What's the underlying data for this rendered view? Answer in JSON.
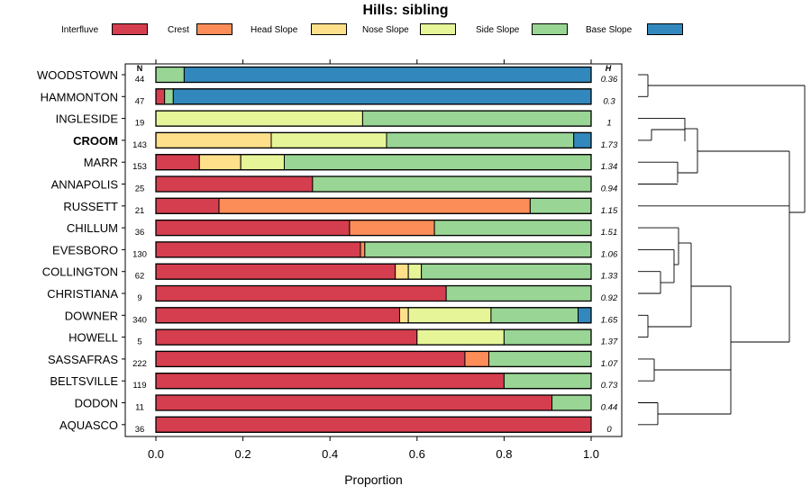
{
  "chart_data": {
    "type": "bar",
    "orientation": "horizontal",
    "stacked": true,
    "title": "Hills: sibling",
    "xlabel": "Proportion",
    "ylabel": "",
    "xlim": [
      0,
      1
    ],
    "xticks": [
      "0.0",
      "0.2",
      "0.4",
      "0.6",
      "0.8",
      "1.0"
    ],
    "xtick_values": [
      0,
      0.2,
      0.4,
      0.6,
      0.8,
      1.0
    ],
    "n_header": "N",
    "h_header": "H",
    "highlighted": "CROOM",
    "legend": [
      {
        "name": "Interfluve",
        "color": "#d53e4f"
      },
      {
        "name": "Crest",
        "color": "#fc8d59"
      },
      {
        "name": "Head Slope",
        "color": "#fee08b"
      },
      {
        "name": "Nose Slope",
        "color": "#e6f598"
      },
      {
        "name": "Side Slope",
        "color": "#99d594"
      },
      {
        "name": "Base Slope",
        "color": "#3288bd"
      }
    ],
    "rows": [
      {
        "name": "WOODSTOWN",
        "n": "44",
        "h": "0.36",
        "values": [
          0,
          0,
          0,
          0,
          0.065,
          0.935
        ]
      },
      {
        "name": "HAMMONTON",
        "n": "47",
        "h": "0.3",
        "values": [
          0.02,
          0,
          0,
          0,
          0.02,
          0.96
        ]
      },
      {
        "name": "INGLESIDE",
        "n": "19",
        "h": "1",
        "values": [
          0,
          0,
          0,
          0.475,
          0.525,
          0
        ]
      },
      {
        "name": "CROOM",
        "n": "143",
        "h": "1.73",
        "values": [
          0,
          0,
          0.265,
          0.265,
          0.43,
          0.04
        ]
      },
      {
        "name": "MARR",
        "n": "153",
        "h": "1.34",
        "values": [
          0.1,
          0,
          0.095,
          0.1,
          0.705,
          0
        ]
      },
      {
        "name": "ANNAPOLIS",
        "n": "25",
        "h": "0.94",
        "values": [
          0.36,
          0,
          0,
          0,
          0.64,
          0
        ]
      },
      {
        "name": "RUSSETT",
        "n": "21",
        "h": "1.15",
        "values": [
          0.145,
          0.715,
          0,
          0,
          0.14,
          0
        ]
      },
      {
        "name": "CHILLUM",
        "n": "36",
        "h": "1.51",
        "values": [
          0.445,
          0.195,
          0,
          0,
          0.36,
          0
        ]
      },
      {
        "name": "EVESBORO",
        "n": "130",
        "h": "1.06",
        "values": [
          0.47,
          0.01,
          0,
          0,
          0.52,
          0
        ]
      },
      {
        "name": "COLLINGTON",
        "n": "62",
        "h": "1.33",
        "values": [
          0.55,
          0,
          0.03,
          0.03,
          0.39,
          0
        ]
      },
      {
        "name": "CHRISTIANA",
        "n": "9",
        "h": "0.92",
        "values": [
          0.667,
          0,
          0,
          0,
          0.333,
          0
        ]
      },
      {
        "name": "DOWNER",
        "n": "340",
        "h": "1.65",
        "values": [
          0.56,
          0,
          0.02,
          0.19,
          0.2,
          0.03
        ]
      },
      {
        "name": "HOWELL",
        "n": "5",
        "h": "1.37",
        "values": [
          0.6,
          0,
          0,
          0.2,
          0.2,
          0
        ]
      },
      {
        "name": "SASSAFRAS",
        "n": "222",
        "h": "1.07",
        "values": [
          0.71,
          0.055,
          0,
          0,
          0.235,
          0
        ]
      },
      {
        "name": "BELTSVILLE",
        "n": "119",
        "h": "0.73",
        "values": [
          0.8,
          0,
          0,
          0,
          0.2,
          0
        ]
      },
      {
        "name": "DODON",
        "n": "11",
        "h": "0.44",
        "values": [
          0.91,
          0,
          0,
          0,
          0.09,
          0
        ]
      },
      {
        "name": "AQUASCO",
        "n": "36",
        "h": "0",
        "values": [
          1,
          0,
          0,
          0,
          0,
          0
        ]
      }
    ]
  }
}
